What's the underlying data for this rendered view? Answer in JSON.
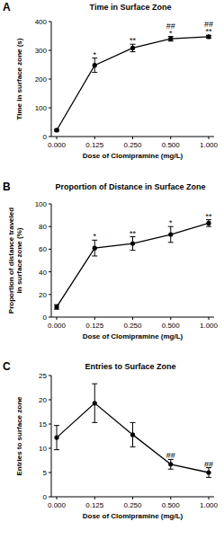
{
  "chart_data": [
    {
      "type": "line",
      "panel": "A",
      "title": "Time in Surface Zone",
      "xlabel": "Dose of Clomipramine (mg/L)",
      "ylabel": [
        "Time in surface zone (s)"
      ],
      "categories": [
        "0.000",
        "0.125",
        "0.250",
        "0.500",
        "1.000"
      ],
      "values": [
        22,
        248,
        308,
        340,
        347
      ],
      "errors": [
        3,
        25,
        13,
        8,
        5
      ],
      "annotations": [
        null,
        [
          "*"
        ],
        [
          "**"
        ],
        [
          "##",
          "*"
        ],
        [
          "##",
          "**"
        ]
      ],
      "color": "#000000",
      "marker": "circle",
      "ylim": [
        0,
        400
      ],
      "yticks": [
        0,
        100,
        200,
        300,
        400
      ]
    },
    {
      "type": "line",
      "panel": "B",
      "title": "Proportion of Distance in Surface Zone",
      "xlabel": "Dose of Clomipramine (mg/L)",
      "ylabel": [
        "Proportion of distance traveled",
        "in surface zone (%)"
      ],
      "categories": [
        "0.000",
        "0.125",
        "0.250",
        "0.500",
        "1.000"
      ],
      "values": [
        9,
        61,
        65,
        73,
        83
      ],
      "errors": [
        2,
        7,
        6,
        7,
        3
      ],
      "annotations": [
        null,
        [
          "*"
        ],
        [
          "**"
        ],
        [
          "*"
        ],
        [
          "**"
        ]
      ],
      "color": "#000000",
      "marker": "circle",
      "ylim": [
        0,
        100
      ],
      "yticks": [
        0,
        20,
        40,
        60,
        80,
        100
      ]
    },
    {
      "type": "line",
      "panel": "C",
      "title": "Entries to Surface Zone",
      "xlabel": "Dose of Clomipramine (mg/L)",
      "ylabel": [
        "Entries to surface zone"
      ],
      "categories": [
        "0.000",
        "0.125",
        "0.250",
        "0.500",
        "1.000"
      ],
      "values": [
        12.2,
        19.3,
        12.8,
        6.7,
        5.0
      ],
      "errors": [
        2.5,
        4.0,
        2.5,
        1.0,
        1.0
      ],
      "annotations": [
        null,
        null,
        null,
        [
          "##"
        ],
        [
          "##"
        ]
      ],
      "color": "#000000",
      "marker": "circle",
      "ylim": [
        0,
        25
      ],
      "yticks": [
        0,
        5,
        10,
        15,
        20,
        25
      ]
    }
  ]
}
